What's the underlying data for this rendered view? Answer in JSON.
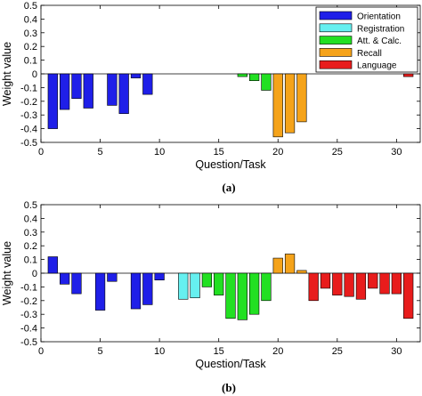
{
  "chart_data": [
    {
      "type": "bar",
      "caption": "(a)",
      "xlabel": "Question/Task",
      "ylabel": "Weight value",
      "xlim": [
        0,
        32
      ],
      "ylim": [
        -0.5,
        0.5
      ],
      "xticks": [
        0,
        5,
        10,
        15,
        20,
        25,
        30
      ],
      "yticks": [
        -0.5,
        -0.4,
        -0.3,
        -0.2,
        -0.1,
        0,
        0.1,
        0.2,
        0.3,
        0.4,
        0.5
      ],
      "legend": {
        "position": "top-right"
      },
      "series": [
        {
          "name": "Orientation",
          "color": "#1f1fe8",
          "x": [
            1,
            2,
            3,
            4,
            5,
            6,
            7,
            8,
            9,
            10
          ],
          "values": [
            -0.4,
            -0.26,
            -0.18,
            -0.25,
            0,
            -0.23,
            -0.29,
            -0.03,
            -0.15,
            0
          ]
        },
        {
          "name": "Registration",
          "color": "#66f0f0",
          "x": [
            11,
            12,
            13
          ],
          "values": [
            0,
            0,
            0
          ]
        },
        {
          "name": "Att. & Calc.",
          "color": "#22e022",
          "x": [
            14,
            15,
            16,
            17,
            18,
            19
          ],
          "values": [
            0,
            0,
            0,
            -0.02,
            -0.05,
            -0.12
          ]
        },
        {
          "name": "Recall",
          "color": "#f5a31a",
          "x": [
            20,
            21,
            22
          ],
          "values": [
            -0.46,
            -0.43,
            -0.35
          ]
        },
        {
          "name": "Language",
          "color": "#e81c1c",
          "x": [
            23,
            24,
            25,
            26,
            27,
            28,
            29,
            30,
            31
          ],
          "values": [
            0,
            0,
            0,
            0,
            0,
            0,
            0,
            0,
            -0.02
          ]
        }
      ]
    },
    {
      "type": "bar",
      "caption": "(b)",
      "xlabel": "Question/Task",
      "ylabel": "Weight value",
      "xlim": [
        0,
        32
      ],
      "ylim": [
        -0.5,
        0.5
      ],
      "xticks": [
        0,
        5,
        10,
        15,
        20,
        25,
        30
      ],
      "yticks": [
        -0.5,
        -0.4,
        -0.3,
        -0.2,
        -0.1,
        0,
        0.1,
        0.2,
        0.3,
        0.4,
        0.5
      ],
      "series": [
        {
          "name": "Orientation",
          "color": "#1f1fe8",
          "x": [
            1,
            2,
            3,
            4,
            5,
            6,
            7,
            8,
            9,
            10
          ],
          "values": [
            0.12,
            -0.08,
            -0.15,
            0,
            -0.27,
            -0.06,
            0,
            -0.26,
            -0.23,
            -0.05
          ]
        },
        {
          "name": "Registration",
          "color": "#66f0f0",
          "x": [
            11,
            12,
            13
          ],
          "values": [
            0,
            -0.19,
            -0.18
          ]
        },
        {
          "name": "Att. & Calc.",
          "color": "#22e022",
          "x": [
            14,
            15,
            16,
            17,
            18,
            19
          ],
          "values": [
            -0.1,
            -0.16,
            -0.33,
            -0.34,
            -0.3,
            -0.2
          ]
        },
        {
          "name": "Recall",
          "color": "#f5a31a",
          "x": [
            20,
            21,
            22
          ],
          "values": [
            0.11,
            0.14,
            0.02
          ]
        },
        {
          "name": "Language",
          "color": "#e81c1c",
          "x": [
            23,
            24,
            25,
            26,
            27,
            28,
            29,
            30,
            31
          ],
          "values": [
            -0.2,
            -0.11,
            -0.16,
            -0.17,
            -0.19,
            -0.11,
            -0.15,
            -0.15,
            -0.33
          ]
        }
      ]
    }
  ]
}
